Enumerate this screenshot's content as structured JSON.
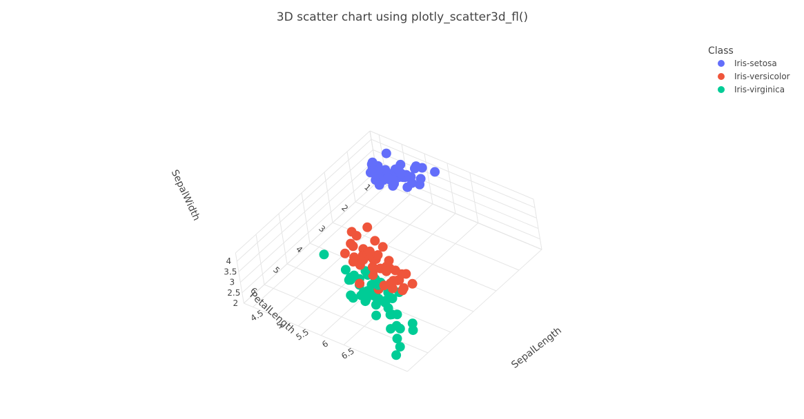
{
  "colors": {
    "background": "#ffffff",
    "grid": "#e5e5e5",
    "text": "#444444"
  },
  "chart_data": {
    "type": "scatter",
    "title": "3D scatter chart using plotly_scatter3d_fl()",
    "axes": {
      "x": {
        "label": "SepalLength",
        "ticks": [
          "4.5",
          "5",
          "5.5",
          "6",
          "6.5"
        ]
      },
      "y": {
        "label": "PetalLength",
        "ticks": [
          "1",
          "2",
          "3",
          "4",
          "5",
          "6"
        ]
      },
      "z": {
        "label": "SepalWidth",
        "ticks": [
          "2",
          "2.5",
          "3",
          "3.5",
          "4"
        ]
      }
    },
    "grid": true,
    "legend": {
      "title": "Class",
      "placement": "top-right",
      "entries": [
        {
          "name": "Iris-setosa",
          "color": "#636efa"
        },
        {
          "name": "Iris-versicolor",
          "color": "#ef553b"
        },
        {
          "name": "Iris-virginica",
          "color": "#00cc96"
        }
      ]
    },
    "series": [
      {
        "name": "Iris-setosa",
        "color": "#636efa",
        "points": [
          [
            5.1,
            1.4,
            3.5
          ],
          [
            4.9,
            1.4,
            3.0
          ],
          [
            4.7,
            1.3,
            3.2
          ],
          [
            4.6,
            1.5,
            3.1
          ],
          [
            5.0,
            1.4,
            3.6
          ],
          [
            5.4,
            1.7,
            3.9
          ],
          [
            4.6,
            1.4,
            3.4
          ],
          [
            5.0,
            1.5,
            3.4
          ],
          [
            4.4,
            1.4,
            2.9
          ],
          [
            4.9,
            1.5,
            3.1
          ],
          [
            5.4,
            1.5,
            3.7
          ],
          [
            4.8,
            1.6,
            3.4
          ],
          [
            4.8,
            1.4,
            3.0
          ],
          [
            4.3,
            1.1,
            3.0
          ],
          [
            5.8,
            1.2,
            4.0
          ],
          [
            5.7,
            1.5,
            4.4
          ],
          [
            5.4,
            1.3,
            3.9
          ],
          [
            5.1,
            1.4,
            3.5
          ],
          [
            5.7,
            1.7,
            3.8
          ],
          [
            5.1,
            1.5,
            3.8
          ],
          [
            5.4,
            1.7,
            3.4
          ],
          [
            5.1,
            1.5,
            3.7
          ],
          [
            4.6,
            1.0,
            3.6
          ],
          [
            5.1,
            1.7,
            3.3
          ],
          [
            4.8,
            1.9,
            3.4
          ],
          [
            5.0,
            1.6,
            3.0
          ],
          [
            5.0,
            1.6,
            3.4
          ],
          [
            5.2,
            1.5,
            3.5
          ],
          [
            5.2,
            1.4,
            3.4
          ],
          [
            4.7,
            1.6,
            3.2
          ],
          [
            4.8,
            1.6,
            3.1
          ],
          [
            5.4,
            1.5,
            3.4
          ],
          [
            5.2,
            1.5,
            4.1
          ],
          [
            5.5,
            1.4,
            4.2
          ],
          [
            4.9,
            1.5,
            3.1
          ],
          [
            5.0,
            1.2,
            3.2
          ],
          [
            5.5,
            1.3,
            3.5
          ],
          [
            4.4,
            1.3,
            3.0
          ],
          [
            5.1,
            1.5,
            3.4
          ],
          [
            5.0,
            1.3,
            3.5
          ],
          [
            4.5,
            1.3,
            2.3
          ],
          [
            4.4,
            1.3,
            3.2
          ],
          [
            5.0,
            1.6,
            3.5
          ],
          [
            5.1,
            1.9,
            3.8
          ],
          [
            4.8,
            1.4,
            3.0
          ],
          [
            5.1,
            1.6,
            3.8
          ],
          [
            4.6,
            1.4,
            3.2
          ],
          [
            5.3,
            1.5,
            3.7
          ],
          [
            5.0,
            1.4,
            3.3
          ]
        ]
      },
      {
        "name": "Iris-versicolor",
        "color": "#ef553b",
        "points": [
          [
            7.0,
            4.7,
            3.2
          ],
          [
            6.4,
            4.5,
            3.2
          ],
          [
            6.9,
            4.9,
            3.1
          ],
          [
            5.5,
            4.0,
            2.3
          ],
          [
            6.5,
            4.6,
            2.8
          ],
          [
            5.7,
            4.5,
            2.8
          ],
          [
            6.3,
            4.7,
            3.3
          ],
          [
            4.9,
            3.3,
            2.4
          ],
          [
            6.6,
            4.6,
            2.9
          ],
          [
            5.2,
            3.9,
            2.7
          ],
          [
            5.0,
            3.5,
            2.0
          ],
          [
            5.9,
            4.2,
            3.0
          ],
          [
            6.0,
            4.0,
            2.2
          ],
          [
            6.1,
            4.7,
            2.9
          ],
          [
            5.6,
            3.6,
            2.9
          ],
          [
            6.7,
            4.4,
            3.1
          ],
          [
            5.6,
            4.5,
            3.0
          ],
          [
            5.8,
            4.1,
            2.7
          ],
          [
            6.2,
            4.5,
            2.2
          ],
          [
            5.6,
            3.9,
            2.5
          ],
          [
            5.9,
            4.8,
            3.2
          ],
          [
            6.1,
            4.0,
            2.8
          ],
          [
            6.3,
            4.9,
            2.5
          ],
          [
            6.1,
            4.7,
            2.8
          ],
          [
            6.4,
            4.3,
            2.9
          ],
          [
            6.6,
            4.4,
            3.0
          ],
          [
            6.8,
            4.8,
            2.8
          ],
          [
            6.7,
            5.0,
            3.0
          ],
          [
            6.0,
            4.5,
            2.9
          ],
          [
            5.7,
            3.5,
            2.6
          ],
          [
            5.5,
            3.8,
            2.4
          ],
          [
            5.5,
            3.7,
            2.4
          ],
          [
            5.8,
            3.9,
            2.7
          ],
          [
            6.0,
            5.1,
            2.7
          ],
          [
            5.4,
            4.5,
            3.0
          ],
          [
            6.0,
            4.5,
            3.4
          ],
          [
            6.7,
            4.7,
            3.1
          ],
          [
            6.3,
            4.4,
            2.3
          ],
          [
            5.6,
            4.1,
            3.0
          ],
          [
            5.5,
            4.0,
            2.5
          ],
          [
            5.5,
            4.4,
            2.6
          ],
          [
            6.1,
            4.6,
            3.0
          ],
          [
            5.8,
            4.0,
            2.6
          ],
          [
            5.0,
            3.3,
            2.3
          ],
          [
            5.6,
            4.2,
            2.7
          ],
          [
            5.7,
            4.2,
            3.0
          ],
          [
            5.7,
            4.2,
            2.9
          ],
          [
            6.2,
            4.3,
            2.9
          ],
          [
            5.1,
            3.0,
            2.5
          ],
          [
            5.7,
            4.1,
            2.8
          ]
        ]
      },
      {
        "name": "Iris-virginica",
        "color": "#00cc96",
        "points": [
          [
            6.3,
            6.0,
            3.3
          ],
          [
            5.8,
            5.1,
            2.7
          ],
          [
            7.1,
            5.9,
            3.0
          ],
          [
            6.3,
            5.6,
            2.9
          ],
          [
            6.5,
            5.8,
            3.0
          ],
          [
            7.6,
            6.6,
            3.0
          ],
          [
            4.9,
            4.5,
            2.5
          ],
          [
            7.3,
            6.3,
            2.9
          ],
          [
            6.7,
            5.8,
            2.5
          ],
          [
            7.2,
            6.1,
            3.6
          ],
          [
            6.5,
            5.1,
            3.2
          ],
          [
            6.4,
            5.3,
            2.7
          ],
          [
            6.8,
            5.5,
            3.0
          ],
          [
            5.7,
            5.0,
            2.5
          ],
          [
            5.8,
            5.1,
            2.8
          ],
          [
            6.4,
            5.3,
            3.2
          ],
          [
            6.5,
            5.5,
            3.0
          ],
          [
            7.7,
            6.7,
            3.8
          ],
          [
            7.7,
            6.9,
            2.6
          ],
          [
            6.0,
            5.0,
            2.2
          ],
          [
            6.9,
            5.7,
            3.2
          ],
          [
            5.6,
            4.9,
            2.8
          ],
          [
            7.7,
            6.7,
            2.8
          ],
          [
            6.3,
            4.9,
            2.7
          ],
          [
            6.7,
            5.7,
            3.3
          ],
          [
            7.2,
            6.0,
            3.2
          ],
          [
            6.2,
            4.8,
            2.8
          ],
          [
            6.1,
            4.9,
            3.0
          ],
          [
            6.4,
            5.6,
            2.8
          ],
          [
            7.2,
            5.8,
            3.0
          ],
          [
            7.4,
            6.1,
            2.8
          ],
          [
            7.9,
            6.4,
            3.8
          ],
          [
            6.4,
            5.6,
            2.8
          ],
          [
            6.3,
            5.1,
            2.8
          ],
          [
            6.1,
            5.6,
            2.6
          ],
          [
            7.7,
            6.1,
            3.0
          ],
          [
            6.3,
            5.6,
            3.4
          ],
          [
            6.4,
            5.5,
            3.1
          ],
          [
            6.0,
            4.8,
            3.0
          ],
          [
            6.9,
            5.4,
            3.1
          ],
          [
            6.7,
            5.6,
            3.1
          ],
          [
            6.9,
            5.1,
            3.1
          ],
          [
            5.8,
            5.1,
            2.7
          ],
          [
            6.8,
            5.9,
            3.2
          ],
          [
            6.7,
            5.7,
            3.3
          ],
          [
            6.7,
            5.2,
            3.0
          ],
          [
            6.3,
            5.0,
            2.5
          ],
          [
            6.5,
            5.2,
            3.0
          ],
          [
            6.2,
            5.4,
            3.4
          ],
          [
            5.9,
            5.1,
            3.0
          ]
        ]
      }
    ]
  }
}
